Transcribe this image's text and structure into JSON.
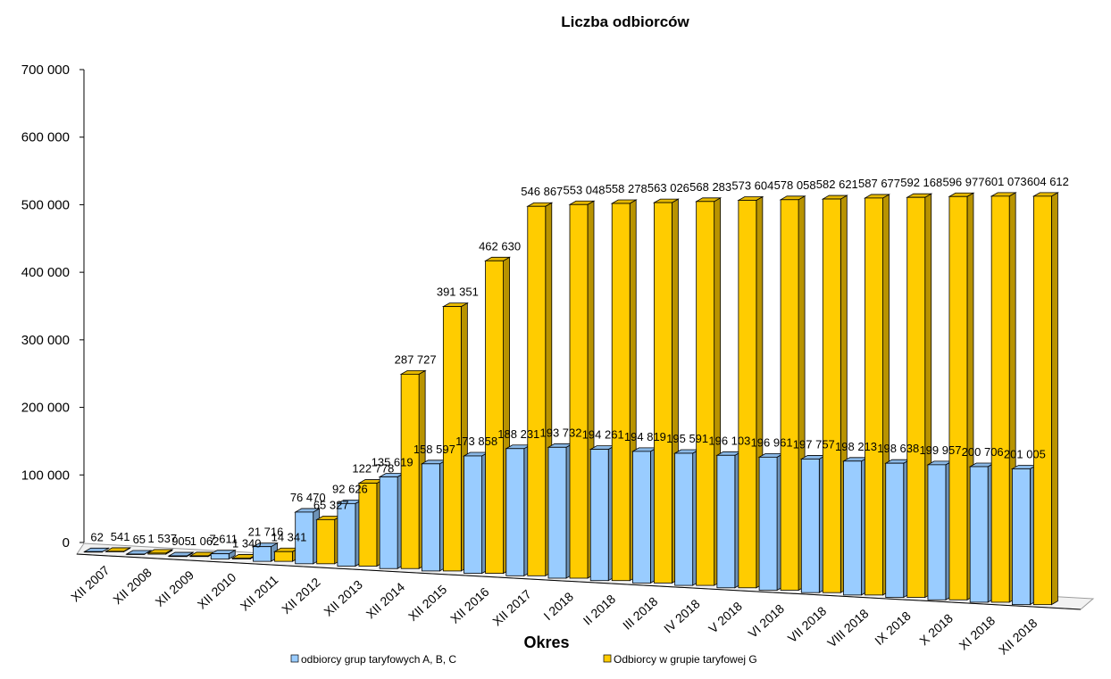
{
  "chart_data": {
    "type": "bar",
    "title": "Liczba odbiorców",
    "xlabel": "Okres",
    "ylabel": "",
    "ylim": [
      0,
      700000
    ],
    "yticks": [
      {
        "value": 0,
        "label": "0"
      },
      {
        "value": 100000,
        "label": "100 000"
      },
      {
        "value": 200000,
        "label": "200 000"
      },
      {
        "value": 300000,
        "label": "300 000"
      },
      {
        "value": 400000,
        "label": "400 000"
      },
      {
        "value": 500000,
        "label": "500 000"
      },
      {
        "value": 600000,
        "label": "600 000"
      },
      {
        "value": 700000,
        "label": "700 000"
      }
    ],
    "categories": [
      "XII 2007",
      "XII 2008",
      "XII 2009",
      "XII 2010",
      "XII 2011",
      "XII 2012",
      "XII 2013",
      "XII 2014",
      "XII 2015",
      "XII 2016",
      "XII 2017",
      "I 2018",
      "II 2018",
      "III 2018",
      "IV 2018",
      "V 2018",
      "VI 2018",
      "VII 2018",
      "VIII 2018",
      "IX 2018",
      "X 2018",
      "XI 2018",
      "XII 2018"
    ],
    "legend_position": "bottom",
    "grid": false,
    "series": [
      {
        "name": "odbiorcy grup taryfowych A, B, C",
        "color": "#99CCFF",
        "values": [
          62,
          65,
          905,
          7611,
          21716,
          76470,
          92626,
          135619,
          158597,
          173858,
          188231,
          193732,
          194261,
          194819,
          195591,
          196103,
          196961,
          197757,
          198213,
          198638,
          199957,
          200706,
          201005
        ],
        "labels": [
          "62",
          "65",
          "905",
          "7 611",
          "21 716",
          "76 470",
          "92 626",
          "135 619",
          "158 597",
          "173 858",
          "188 231",
          "193 732",
          "194 261",
          "194 819",
          "195 591",
          "196 103",
          "196 961",
          "197 757",
          "198 213",
          "198 638",
          "199 957",
          "200 706",
          "201 005"
        ]
      },
      {
        "name": "Odbiorcy w grupie taryfowej G",
        "color": "#FFCC00",
        "values": [
          541,
          1537,
          1062,
          1340,
          14341,
          65327,
          122778,
          287727,
          391351,
          462630,
          546867,
          553048,
          558278,
          563026,
          568283,
          573604,
          578058,
          582621,
          587677,
          592168,
          596977,
          601073,
          604612
        ],
        "labels": [
          "541",
          "1 537",
          "1 062",
          "1 340",
          "14 341",
          "65 327",
          "122 778",
          "287 727",
          "391 351",
          "462 630",
          "546 867",
          "553 048",
          "558 278",
          "563 026",
          "568 283",
          "573 604",
          "578 058",
          "582 621",
          "587 677",
          "592 168",
          "596 977",
          "601 073",
          "604 612"
        ]
      }
    ]
  }
}
